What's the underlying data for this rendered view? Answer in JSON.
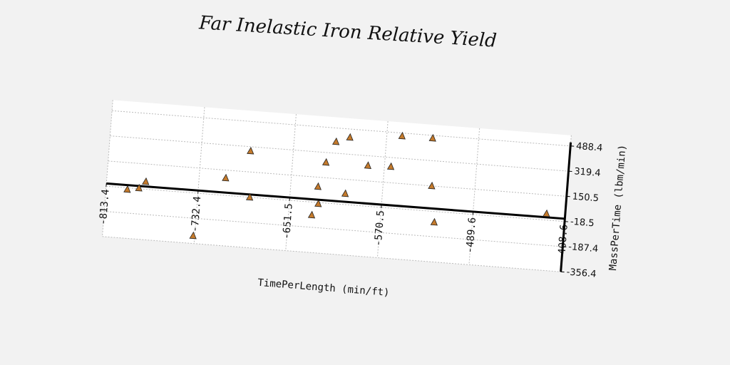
{
  "chart_data": {
    "type": "scatter",
    "title": "Far Inelastic Iron Relative Yield",
    "x_label": "TimePerLength (min/ft)",
    "y_label": "MassPerTime (lbm/min)",
    "x": [
      -794.6,
      -784.5,
      -778.9,
      -733.7,
      -709,
      -689,
      -686.6,
      -631,
      -626,
      -627.4,
      -622,
      -614.6,
      -602.7,
      -603,
      -585,
      -564.8,
      -557,
      -530,
      -527.6,
      -523,
      -425
    ],
    "values": [
      -29,
      -13.6,
      32.8,
      -304,
      98,
      291,
      -18,
      -105,
      -26,
      88,
      254,
      397,
      433,
      55,
      254,
      259,
      469,
      470,
      151,
      -90,
      25
    ],
    "color": "#c47a2c",
    "xlim": [
      -813.4,
      -408.6
    ],
    "xticks": [
      -813.4,
      -732.4,
      -651.5,
      -570.5,
      -489.6,
      -408.6
    ],
    "ylim": [
      -356.4,
      560
    ],
    "yticks": [
      -356.4,
      -187.4,
      -18.5,
      150.5,
      319.4,
      488.4
    ],
    "grid": true
  }
}
